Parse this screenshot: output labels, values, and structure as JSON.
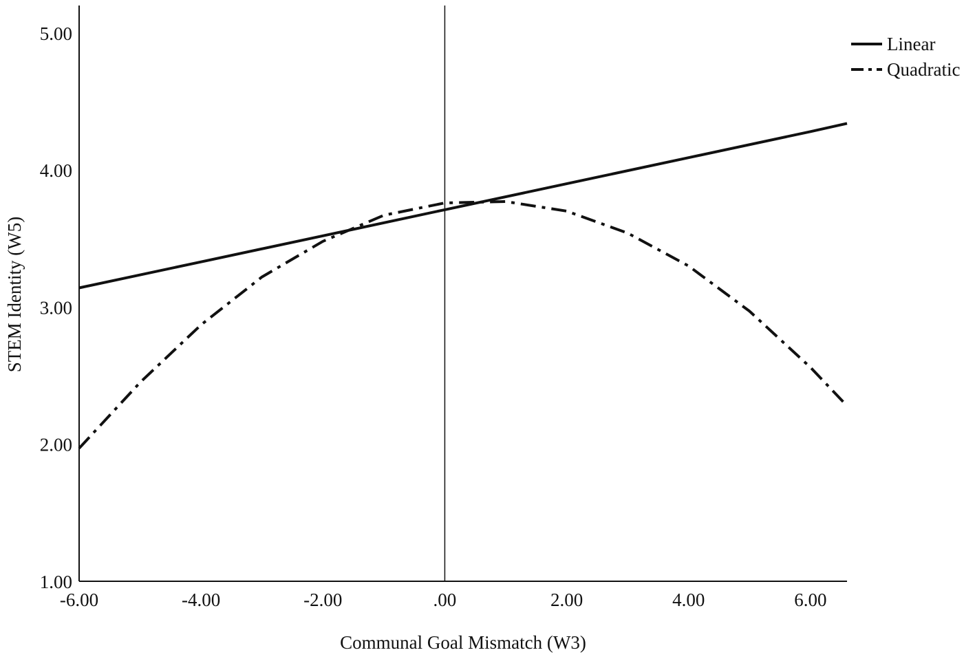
{
  "chart_data": {
    "type": "line",
    "title": "",
    "xlabel": "Communal Goal Mismatch (W3)",
    "ylabel": "STEM Identity (W5)",
    "xlim": [
      -6.0,
      6.6
    ],
    "ylim": [
      1.0,
      5.2
    ],
    "x_ticks": [
      -6,
      -4,
      -2,
      0,
      2,
      4,
      6
    ],
    "x_tick_labels": [
      "-6.00",
      "-4.00",
      "-2.00",
      ".00",
      "2.00",
      "4.00",
      "6.00"
    ],
    "y_ticks": [
      1,
      2,
      3,
      4,
      5
    ],
    "y_tick_labels": [
      "1.00",
      "2.00",
      "3.00",
      "4.00",
      "5.00"
    ],
    "reference_line_x": 0,
    "grid": false,
    "legend_position": "top-right",
    "series": [
      {
        "name": "Linear",
        "style": "solid",
        "x": [
          -6.0,
          -4.0,
          -2.0,
          0.0,
          2.0,
          4.0,
          6.0,
          6.6
        ],
        "y": [
          3.14,
          3.33,
          3.52,
          3.71,
          3.9,
          4.09,
          4.28,
          4.34
        ]
      },
      {
        "name": "Quadratic",
        "style": "dash-dot",
        "x": [
          -6.0,
          -5.0,
          -4.0,
          -3.0,
          -2.0,
          -1.0,
          0.0,
          1.0,
          2.0,
          3.0,
          4.0,
          5.0,
          6.0,
          6.6
        ],
        "y": [
          1.97,
          2.45,
          2.87,
          3.22,
          3.48,
          3.67,
          3.76,
          3.77,
          3.7,
          3.54,
          3.3,
          2.97,
          2.56,
          2.28
        ]
      }
    ],
    "colors": {
      "line": "#111111",
      "axis": "#111111",
      "background": "#ffffff"
    }
  }
}
